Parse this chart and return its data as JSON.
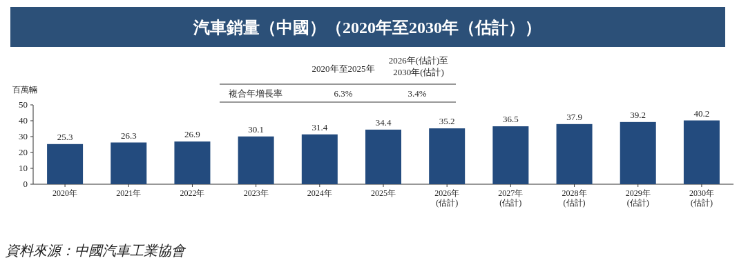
{
  "chart_data": {
    "type": "bar",
    "title": "汽車銷量（中國）（2020年至2030年（估計））",
    "ylabel": "百萬輛",
    "categories": [
      "2020年",
      "2021年",
      "2022年",
      "2023年",
      "2024年",
      "2025年",
      "2026年\n(估計)",
      "2027年\n(估計)",
      "2028年\n(估計)",
      "2029年\n(估計)",
      "2030年\n(估計)"
    ],
    "values": [
      25.3,
      26.3,
      26.9,
      30.1,
      31.4,
      34.4,
      35.2,
      36.5,
      37.9,
      39.2,
      40.2
    ],
    "color": "#234b7e",
    "ylim": [
      0,
      50
    ],
    "yticks": [
      0,
      10,
      20,
      30,
      40,
      50
    ],
    "data_labels": true,
    "annotations": [
      "2020年至2025年",
      "2026年(估計)至\n2030年(估計)",
      "複合年增長率",
      "6.3%",
      "3.4%",
      "資料來源：中國汽車工業協會"
    ]
  }
}
